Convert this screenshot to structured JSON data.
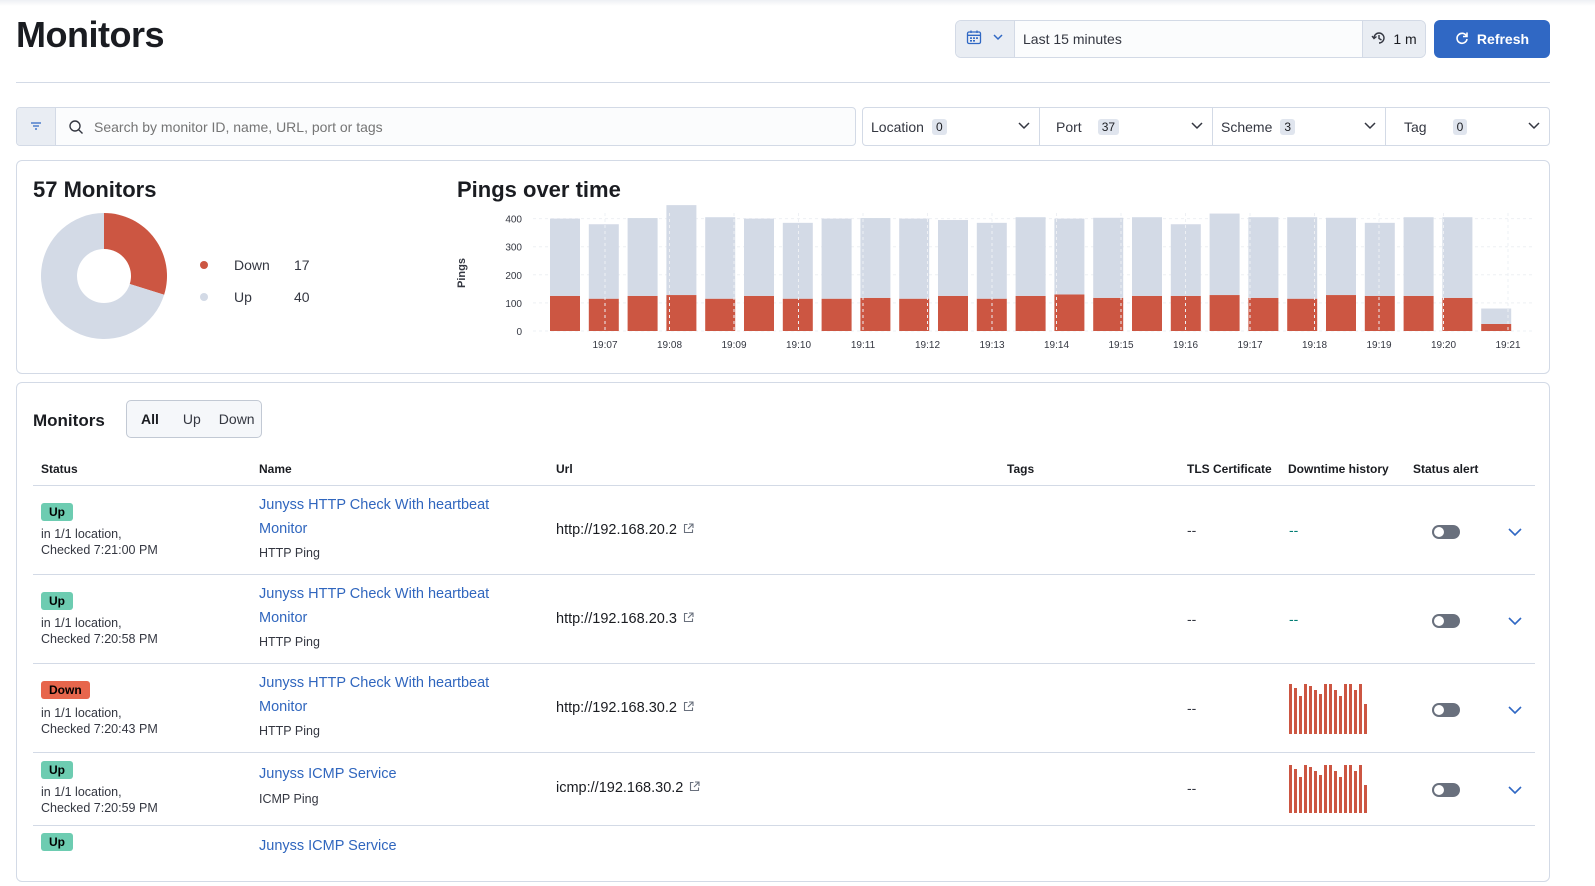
{
  "header": {
    "title": "Monitors",
    "date_range": "Last 15 minutes",
    "refresh_interval": "1 m",
    "refresh_label": "Refresh"
  },
  "search": {
    "placeholder": "Search by monitor ID, name, URL, port or tags"
  },
  "filters": [
    {
      "label": "Location",
      "count": "0"
    },
    {
      "label": "Port",
      "count": "37"
    },
    {
      "label": "Scheme",
      "count": "3"
    },
    {
      "label": "Tag",
      "count": "0"
    }
  ],
  "summary": {
    "title": "57 Monitors",
    "legend": [
      {
        "label": "Down",
        "value": "17",
        "color": "#cc5642"
      },
      {
        "label": "Up",
        "value": "40",
        "color": "#d3dae6"
      }
    ]
  },
  "colors": {
    "down": "#cc5642",
    "up": "#d3dae6",
    "accent": "#3068c4",
    "link": "#3066be"
  },
  "chart_data": {
    "type": "bar",
    "title": "Pings over time",
    "ylabel": "Pings",
    "ylim": [
      0,
      420
    ],
    "yticks": [
      0,
      100,
      200,
      300,
      400
    ],
    "xticks": [
      "19:07",
      "19:08",
      "19:09",
      "19:10",
      "19:11",
      "19:12",
      "19:13",
      "19:14",
      "19:15",
      "19:16",
      "19:17",
      "19:18",
      "19:19",
      "19:20",
      "19:21"
    ],
    "stacked": true,
    "series": [
      {
        "name": "Down",
        "color": "#cc5642",
        "values": [
          125,
          115,
          125,
          128,
          115,
          125,
          115,
          115,
          118,
          115,
          125,
          115,
          125,
          130,
          118,
          125,
          125,
          128,
          118,
          115,
          128,
          125,
          125,
          118,
          25
        ]
      },
      {
        "name": "Up",
        "color": "#d3dae6",
        "values": [
          275,
          265,
          277,
          320,
          290,
          275,
          270,
          285,
          284,
          285,
          270,
          270,
          280,
          270,
          285,
          280,
          255,
          290,
          287,
          290,
          275,
          260,
          280,
          287,
          55
        ]
      }
    ]
  },
  "list": {
    "title": "Monitors",
    "status_filter": [
      "All",
      "Up",
      "Down"
    ],
    "columns": [
      "Status",
      "Name",
      "Url",
      "Tags",
      "TLS Certificate",
      "Downtime history",
      "Status alert"
    ],
    "rows": [
      {
        "status": "Up",
        "location": "in 1/1 location,",
        "checked": "Checked 7:21:00 PM",
        "name": "Junyss HTTP Check With heartbeat Monitor",
        "type": "HTTP Ping",
        "url": "http://192.168.20.2",
        "tls": "--",
        "history": "--"
      },
      {
        "status": "Up",
        "location": "in 1/1 location,",
        "checked": "Checked 7:20:58 PM",
        "name": "Junyss HTTP Check With heartbeat Monitor",
        "type": "HTTP Ping",
        "url": "http://192.168.20.3",
        "tls": "--",
        "history": "--"
      },
      {
        "status": "Down",
        "location": "in 1/1 location,",
        "checked": "Checked 7:20:43 PM",
        "name": "Junyss HTTP Check With heartbeat Monitor",
        "type": "HTTP Ping",
        "url": "http://192.168.30.2",
        "tls": "--",
        "history": ""
      },
      {
        "status": "Up",
        "location": "in 1/1 location,",
        "checked": "Checked 7:20:59 PM",
        "name": "Junyss ICMP Service",
        "type": "ICMP Ping",
        "url": "icmp://192.168.30.2",
        "tls": "--",
        "history": ""
      },
      {
        "status": "Up",
        "location": "",
        "checked": "",
        "name": "Junyss ICMP Service",
        "type": "",
        "url": "",
        "tls": "",
        "history": ""
      }
    ]
  }
}
